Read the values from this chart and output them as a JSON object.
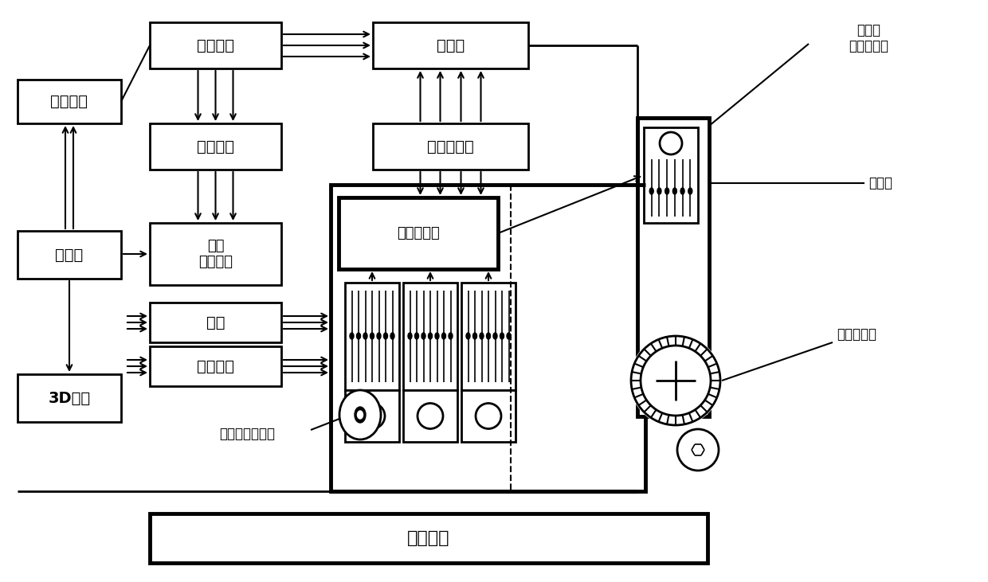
{
  "bg_color": "#ffffff",
  "labels": {
    "shuju_caiji": "数据采集",
    "chuliq": "处理器",
    "3d_show": "3D显示",
    "zhu_fangdaqi": "主放大器",
    "cayang_baochi": "采样保持",
    "duolu_mozhuan": "多路\n模数转换",
    "dianyuan": "电源",
    "dianyuan_dianlu": "电源电路",
    "jianfaqi": "减法器",
    "ditong_lüboqi": "低通滤波器",
    "qianzhi_fangdaqi": "前置放大器",
    "daice_gangui": "待测钢轨",
    "cijyi_zhujieshouqi": "磁记忆主接收器",
    "cijyi_bujiejieshouqi": "磁记忆\n补偿接收器",
    "pingbike": "屏蔽壳",
    "guangdian_bianmaqi": "光电编码器"
  }
}
